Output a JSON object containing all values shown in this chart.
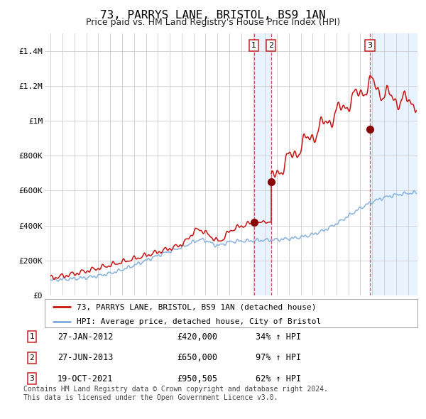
{
  "title": "73, PARRYS LANE, BRISTOL, BS9 1AN",
  "subtitle": "Price paid vs. HM Land Registry's House Price Index (HPI)",
  "hpi_color": "#7aaadd",
  "price_color": "#cc1111",
  "marker_color": "#880000",
  "background_color": "#ffffff",
  "grid_color": "#cccccc",
  "transactions": [
    {
      "num": 1,
      "date": "27-JAN-2012",
      "price": 420000,
      "price_str": "£420,000",
      "pct": "34%",
      "x_year": 2012.07
    },
    {
      "num": 2,
      "date": "27-JUN-2013",
      "price": 650000,
      "price_str": "£650,000",
      "pct": "97%",
      "x_year": 2013.49
    },
    {
      "num": 3,
      "date": "19-OCT-2021",
      "price": 950505,
      "price_str": "£950,505",
      "pct": "62%",
      "x_year": 2021.8
    }
  ],
  "shaded_regions": [
    {
      "x_start": 2012.07,
      "x_end": 2013.49
    },
    {
      "x_start": 2021.8,
      "x_end": 2025.8
    }
  ],
  "ylim": [
    0,
    1500000
  ],
  "xlim": [
    1994.5,
    2025.8
  ],
  "yticks": [
    0,
    200000,
    400000,
    600000,
    800000,
    1000000,
    1200000,
    1400000
  ],
  "ytick_labels": [
    "£0",
    "£200K",
    "£400K",
    "£600K",
    "£800K",
    "£1M",
    "£1.2M",
    "£1.4M"
  ],
  "legend_label_price": "73, PARRYS LANE, BRISTOL, BS9 1AN (detached house)",
  "legend_label_hpi": "HPI: Average price, detached house, City of Bristol",
  "footer_line1": "Contains HM Land Registry data © Crown copyright and database right 2024.",
  "footer_line2": "This data is licensed under the Open Government Licence v3.0."
}
